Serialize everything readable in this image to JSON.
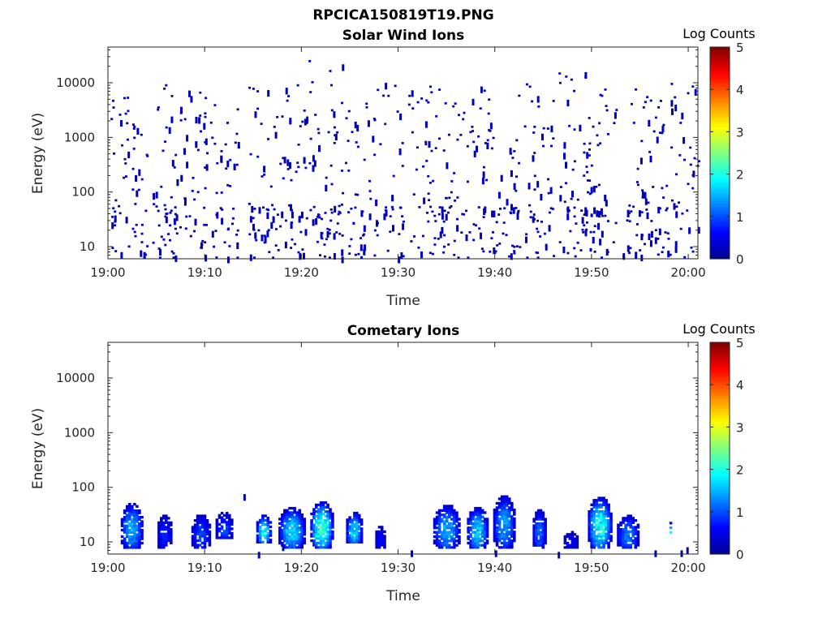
{
  "figure_title": "RPCICA150819T19.PNG",
  "colors": {
    "axis": "#262626",
    "colormap": [
      "#00008f",
      "#0000ff",
      "#0080ff",
      "#00ffff",
      "#80ff80",
      "#ffff00",
      "#ff8000",
      "#ff0000",
      "#800000"
    ]
  },
  "chart_data": [
    {
      "type": "heatmap",
      "title": "Solar Wind Ions",
      "xlabel": "Time",
      "ylabel": "Energy (eV)",
      "colorbar_label": "Log Counts",
      "x_ticks": [
        "19:00",
        "19:10",
        "19:20",
        "19:30",
        "19:40",
        "19:50",
        "20:00"
      ],
      "xlim_minutes": [
        0,
        61
      ],
      "y_scale": "log",
      "y_ticks": [
        "10",
        "100",
        "1000",
        "10000"
      ],
      "ylim": [
        6,
        45000
      ],
      "clim": [
        0,
        5
      ],
      "colorbar_ticks": [
        "0",
        "1",
        "2",
        "3",
        "4",
        "5"
      ],
      "description_of_data": "sparse single-count pixels (log counts ~0–0.5) scattered 6 eV–20 keV, denser below 50 eV",
      "clusters": [
        {
          "t": 0.5,
          "e": 10,
          "w": 0.3,
          "emin": 6,
          "emax": 10000,
          "n": 14
        },
        {
          "t": 2.5,
          "e": 40,
          "w": 1.5,
          "emin": 6,
          "emax": 8000,
          "n": 50
        },
        {
          "t": 6.0,
          "e": 30,
          "w": 1.5,
          "emin": 6,
          "emax": 10000,
          "n": 55
        },
        {
          "t": 9.0,
          "e": 20,
          "w": 1.2,
          "emin": 6,
          "emax": 11000,
          "n": 45
        },
        {
          "t": 12.0,
          "e": 40,
          "w": 1.5,
          "emin": 6,
          "emax": 5000,
          "n": 45
        },
        {
          "t": 16.0,
          "e": 20,
          "w": 1.5,
          "emin": 6,
          "emax": 10000,
          "n": 50
        },
        {
          "t": 19.0,
          "e": 25,
          "w": 1.5,
          "emin": 6,
          "emax": 10000,
          "n": 50
        },
        {
          "t": 22.5,
          "e": 25,
          "w": 1.8,
          "emin": 6,
          "emax": 28000,
          "n": 70
        },
        {
          "t": 26.0,
          "e": 30,
          "w": 1.5,
          "emin": 6,
          "emax": 8000,
          "n": 45
        },
        {
          "t": 29.0,
          "e": 20,
          "w": 1.5,
          "emin": 6,
          "emax": 10000,
          "n": 40
        },
        {
          "t": 33.0,
          "e": 30,
          "w": 2.0,
          "emin": 6,
          "emax": 10000,
          "n": 65
        },
        {
          "t": 37.0,
          "e": 20,
          "w": 2.0,
          "emin": 6,
          "emax": 10000,
          "n": 55
        },
        {
          "t": 40.5,
          "e": 30,
          "w": 2.0,
          "emin": 6,
          "emax": 9000,
          "n": 60
        },
        {
          "t": 44.5,
          "e": 20,
          "w": 1.5,
          "emin": 6,
          "emax": 10000,
          "n": 50
        },
        {
          "t": 48.0,
          "e": 30,
          "w": 1.5,
          "emin": 6,
          "emax": 16000,
          "n": 55
        },
        {
          "t": 51.0,
          "e": 25,
          "w": 1.5,
          "emin": 6,
          "emax": 10000,
          "n": 55
        },
        {
          "t": 54.5,
          "e": 20,
          "w": 1.5,
          "emin": 6,
          "emax": 8000,
          "n": 45
        },
        {
          "t": 57.5,
          "e": 30,
          "w": 1.5,
          "emin": 6,
          "emax": 14000,
          "n": 50
        },
        {
          "t": 60.0,
          "e": 20,
          "w": 1.0,
          "emin": 6,
          "emax": 10000,
          "n": 25
        }
      ]
    },
    {
      "type": "heatmap",
      "title": "Cometary Ions",
      "xlabel": "Time",
      "ylabel": "Energy (eV)",
      "colorbar_label": "Log Counts",
      "x_ticks": [
        "19:00",
        "19:10",
        "19:20",
        "19:30",
        "19:40",
        "19:50",
        "20:00"
      ],
      "xlim_minutes": [
        0,
        61
      ],
      "y_scale": "log",
      "y_ticks": [
        "10",
        "100",
        "1000",
        "10000"
      ],
      "ylim": [
        6,
        45000
      ],
      "clim": [
        0,
        5
      ],
      "colorbar_ticks": [
        "0",
        "1",
        "2",
        "3",
        "4",
        "5"
      ],
      "description_of_data": "blobs of cometary ions between ~8 and ~90 eV, peak log counts up to ~2.5",
      "blobs": [
        {
          "t0": 1.2,
          "t1": 3.5,
          "elo": 8,
          "ehi": 65,
          "peak": 1.6
        },
        {
          "t0": 5.0,
          "t1": 6.5,
          "elo": 8,
          "ehi": 40,
          "peak": 0.8
        },
        {
          "t0": 8.5,
          "t1": 10.5,
          "elo": 8,
          "ehi": 40,
          "peak": 1.0
        },
        {
          "t0": 11.0,
          "t1": 12.8,
          "elo": 12,
          "ehi": 45,
          "peak": 1.0
        },
        {
          "t0": 15.2,
          "t1": 16.8,
          "elo": 10,
          "ehi": 40,
          "peak": 2.0
        },
        {
          "t0": 17.5,
          "t1": 20.3,
          "elo": 8,
          "ehi": 55,
          "peak": 1.8
        },
        {
          "t0": 20.8,
          "t1": 23.2,
          "elo": 8,
          "ehi": 70,
          "peak": 2.4
        },
        {
          "t0": 24.5,
          "t1": 26.2,
          "elo": 10,
          "ehi": 45,
          "peak": 1.9
        },
        {
          "t0": 27.5,
          "t1": 28.6,
          "elo": 8,
          "ehi": 25,
          "peak": 0.6
        },
        {
          "t0": 33.5,
          "t1": 36.3,
          "elo": 8,
          "ehi": 60,
          "peak": 1.6
        },
        {
          "t0": 37.0,
          "t1": 39.2,
          "elo": 8,
          "ehi": 55,
          "peak": 1.8
        },
        {
          "t0": 39.7,
          "t1": 42.0,
          "elo": 8,
          "ehi": 90,
          "peak": 1.5
        },
        {
          "t0": 43.8,
          "t1": 45.2,
          "elo": 8,
          "ehi": 50,
          "peak": 1.2
        },
        {
          "t0": 47.0,
          "t1": 48.5,
          "elo": 8,
          "ehi": 20,
          "peak": 0.5
        },
        {
          "t0": 49.5,
          "t1": 52.0,
          "elo": 8,
          "ehi": 85,
          "peak": 2.2
        },
        {
          "t0": 52.5,
          "t1": 54.8,
          "elo": 8,
          "ehi": 40,
          "peak": 1.3
        },
        {
          "t0": 57.9,
          "t1": 58.2,
          "elo": 15,
          "ehi": 30,
          "peak": 2.0
        }
      ],
      "sparse_points": [
        {
          "t": 14.0,
          "e": 75
        },
        {
          "t": 15.5,
          "e": 6
        },
        {
          "t": 18.0,
          "e": 9
        },
        {
          "t": 31.3,
          "e": 7
        },
        {
          "t": 40.0,
          "e": 7
        },
        {
          "t": 46.5,
          "e": 6
        },
        {
          "t": 56.5,
          "e": 7
        },
        {
          "t": 59.2,
          "e": 7
        },
        {
          "t": 59.8,
          "e": 8
        }
      ]
    }
  ]
}
